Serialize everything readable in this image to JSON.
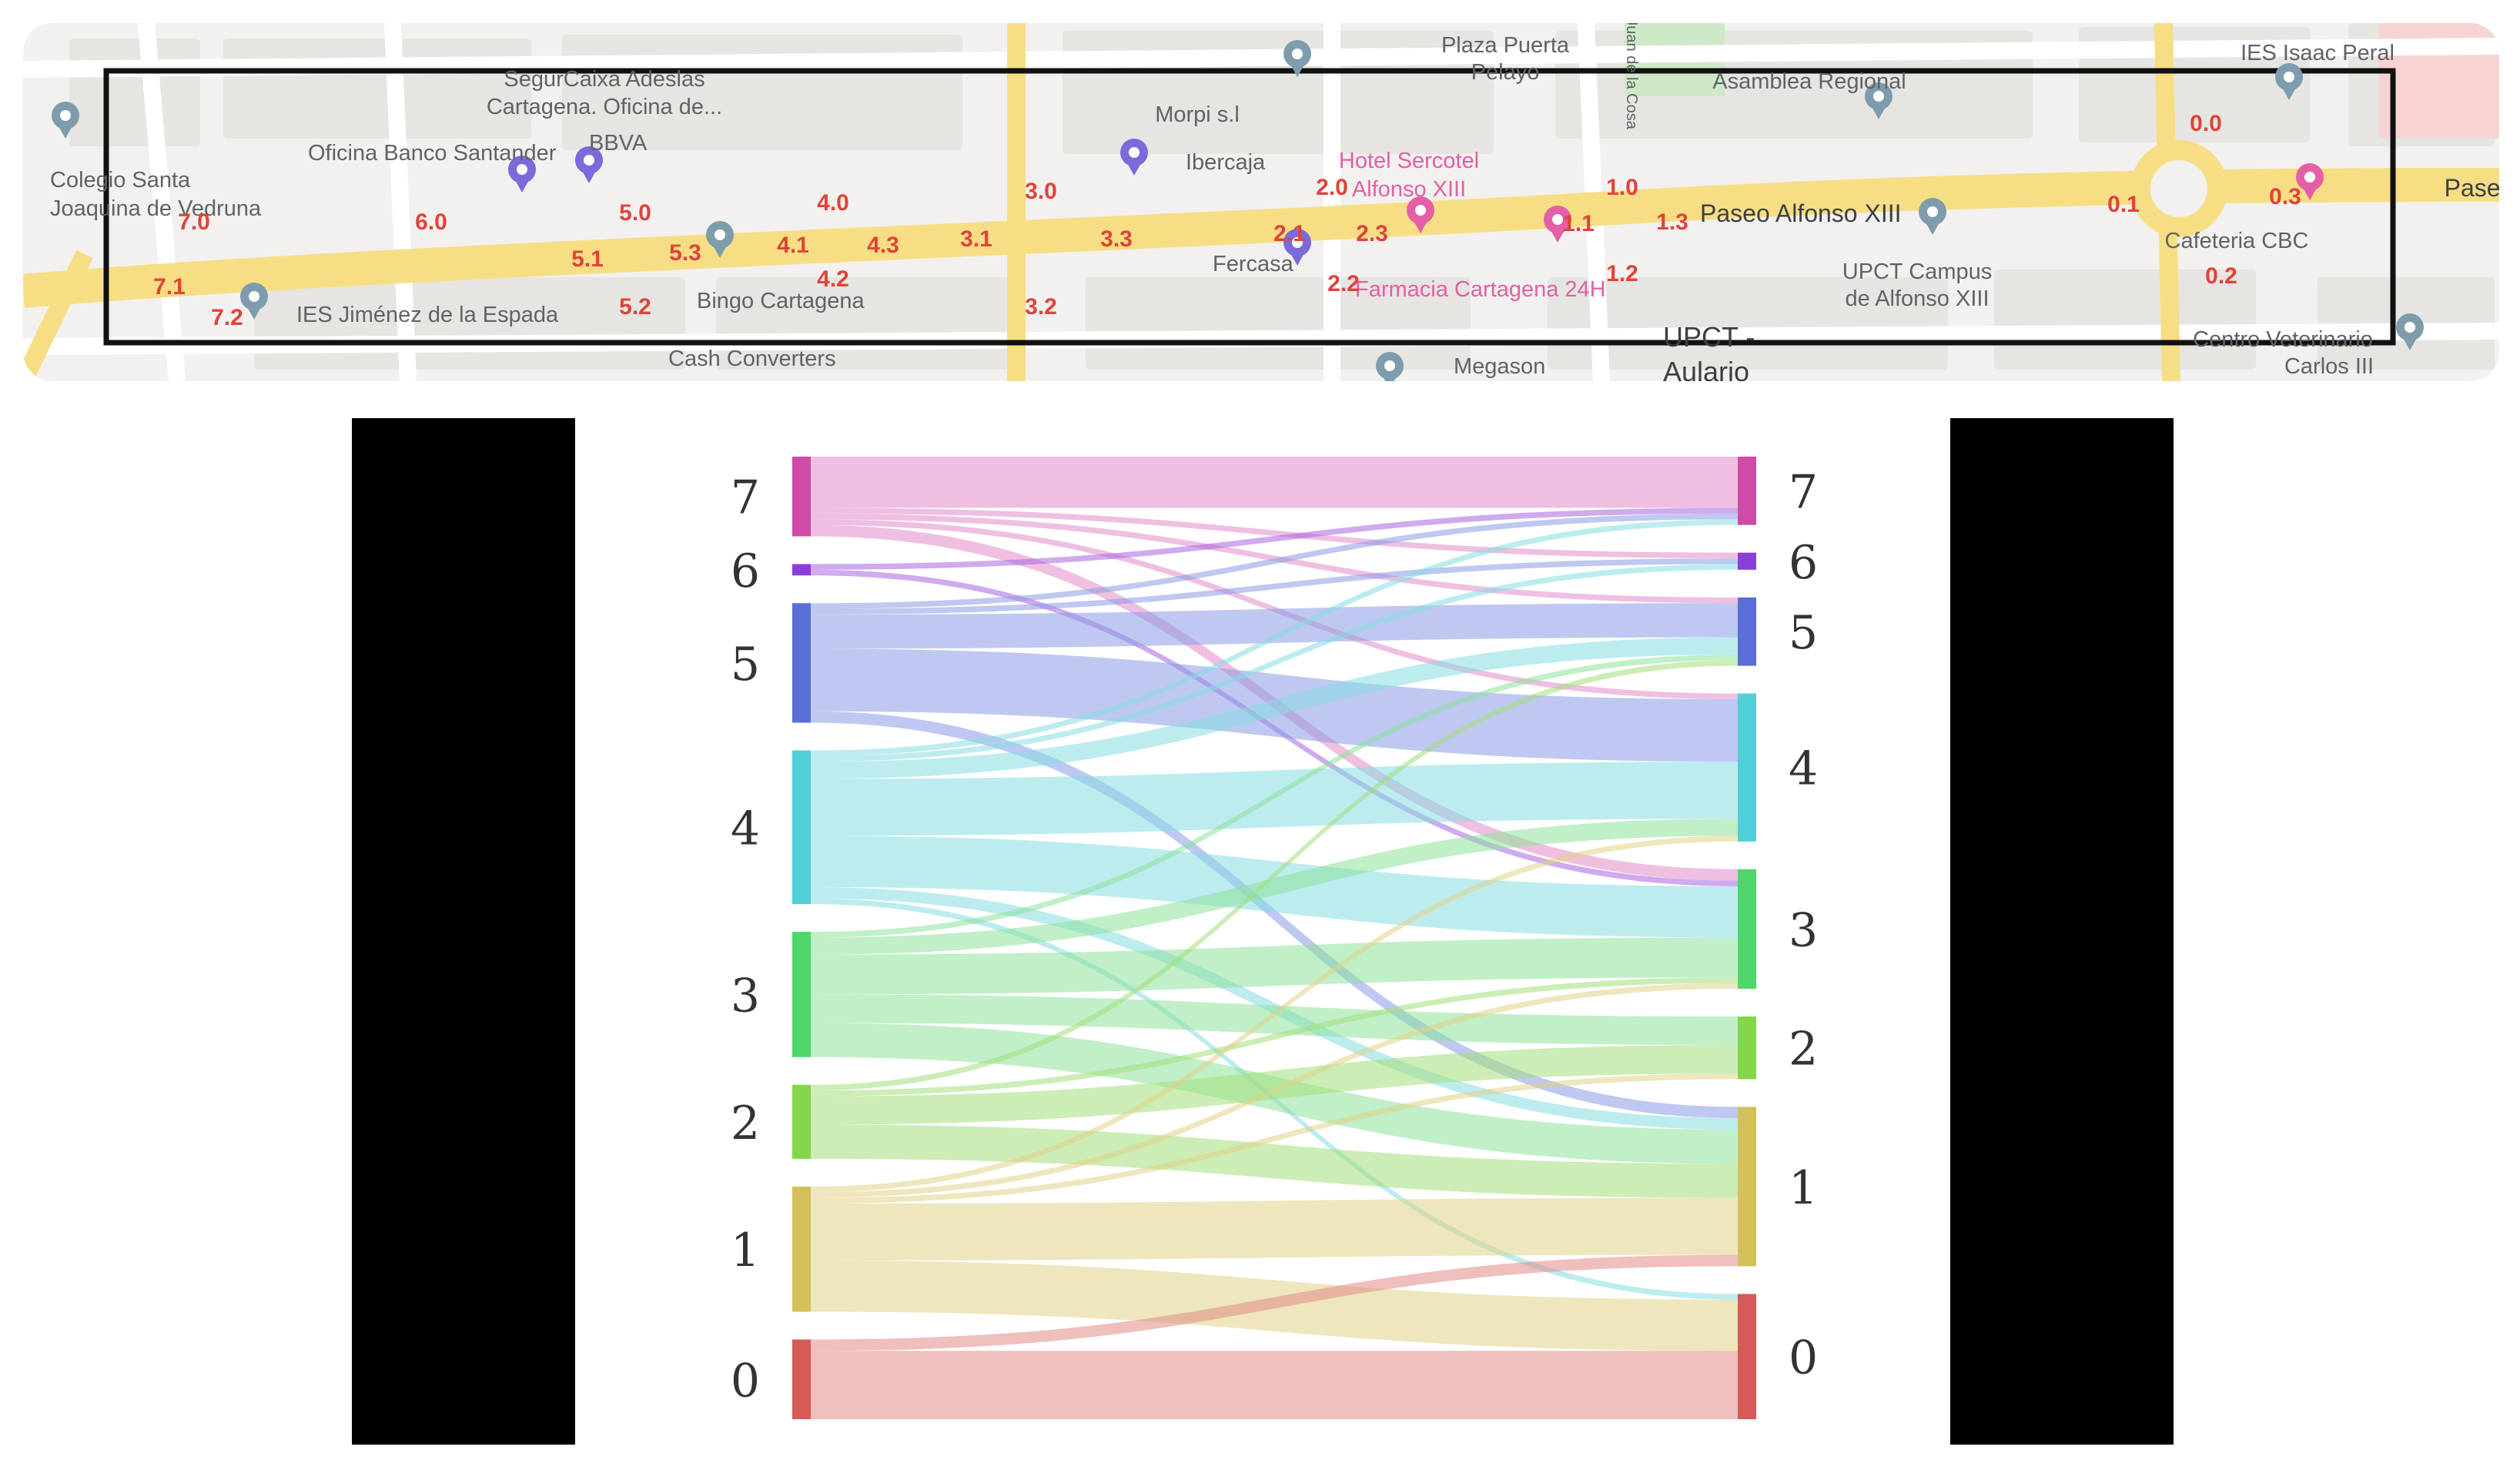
{
  "map": {
    "places": [
      "SegurCaixa Adeslas",
      "Cartagena. Oficina de...",
      "Oficina Banco Santander",
      "BBVA",
      "Colegio Santa",
      "Joaquina de Vedruna",
      "IES Jiménez de la Espada",
      "Bingo Cartagena",
      "Calle Juan de la Cosa",
      "Morpi s.l",
      "Ibercaja",
      "Fercasa",
      "Hotel Sercotel",
      "Alfonso XIII",
      "Farmacia Cartagena 24H",
      "Plaza Puerta",
      "Pelayo",
      "Asamblea Regional",
      "IES Isaac Peral",
      "Paseo Alfonso XIII",
      "Paseo",
      "UPCT Campus",
      "de Alfonso XIII",
      "UPCT -",
      "Aulario",
      "Cafeteria CBC",
      "Centro Veterinario",
      "Carlos III",
      "Cash Converters",
      "Megason"
    ],
    "segment_labels": [
      "7.0",
      "7.1",
      "7.2",
      "6.0",
      "5.0",
      "5.1",
      "5.2",
      "5.3",
      "4.0",
      "4.1",
      "4.2",
      "4.3",
      "3.0",
      "3.1",
      "3.2",
      "3.3",
      "2.0",
      "2.1",
      "2.2",
      "2.3",
      "1.0",
      "1.1",
      "1.2",
      "1.3",
      "0.0",
      "0.1",
      "0.2",
      "0.3"
    ],
    "colors": {
      "road": "#f7de84",
      "label": "#e0433a",
      "pin": "#7f9cad",
      "pin_purple": "#7a6bdb",
      "pin_pink": "#e45fa5"
    }
  },
  "chart_data": {
    "type": "sankey",
    "left_labels": [
      "7",
      "6",
      "5",
      "4",
      "3",
      "2",
      "1",
      "0"
    ],
    "right_labels": [
      "7",
      "6",
      "5",
      "4",
      "3",
      "2",
      "1",
      "0"
    ],
    "node_colors": {
      "7": "#e28bc8",
      "6": "#a864e0",
      "5": "#8b9ae6",
      "4": "#86dde2",
      "3": "#8ce29a",
      "2": "#a3df7a",
      "1": "#e0d187",
      "0": "#e28a86"
    },
    "node_edge_colors": {
      "7": "#d04aa7",
      "6": "#8a3fd8",
      "5": "#5a6ed8",
      "4": "#4fcfd8",
      "3": "#4fd66a",
      "2": "#84d64a",
      "1": "#d4c05a",
      "0": "#d65a55"
    },
    "left_totals": {
      "7": 14,
      "6": 2,
      "5": 21,
      "4": 27,
      "3": 22,
      "2": 13,
      "1": 22,
      "0": 14
    },
    "flows": [
      {
        "source": "7",
        "target": "7",
        "value": 9
      },
      {
        "source": "7",
        "target": "6",
        "value": 1
      },
      {
        "source": "7",
        "target": "5",
        "value": 1
      },
      {
        "source": "7",
        "target": "4",
        "value": 1
      },
      {
        "source": "7",
        "target": "3",
        "value": 2
      },
      {
        "source": "6",
        "target": "7",
        "value": 1
      },
      {
        "source": "6",
        "target": "3",
        "value": 1
      },
      {
        "source": "5",
        "target": "7",
        "value": 1
      },
      {
        "source": "5",
        "target": "6",
        "value": 1
      },
      {
        "source": "5",
        "target": "5",
        "value": 6
      },
      {
        "source": "5",
        "target": "4",
        "value": 11
      },
      {
        "source": "5",
        "target": "1",
        "value": 2
      },
      {
        "source": "4",
        "target": "7",
        "value": 1
      },
      {
        "source": "4",
        "target": "6",
        "value": 1
      },
      {
        "source": "4",
        "target": "5",
        "value": 3
      },
      {
        "source": "4",
        "target": "4",
        "value": 10
      },
      {
        "source": "4",
        "target": "3",
        "value": 9
      },
      {
        "source": "4",
        "target": "1",
        "value": 2
      },
      {
        "source": "4",
        "target": "0",
        "value": 1
      },
      {
        "source": "3",
        "target": "5",
        "value": 1
      },
      {
        "source": "3",
        "target": "4",
        "value": 3
      },
      {
        "source": "3",
        "target": "3",
        "value": 7
      },
      {
        "source": "3",
        "target": "2",
        "value": 5
      },
      {
        "source": "3",
        "target": "1",
        "value": 6
      },
      {
        "source": "2",
        "target": "5",
        "value": 1
      },
      {
        "source": "2",
        "target": "3",
        "value": 1
      },
      {
        "source": "2",
        "target": "2",
        "value": 5
      },
      {
        "source": "2",
        "target": "1",
        "value": 6
      },
      {
        "source": "1",
        "target": "4",
        "value": 1
      },
      {
        "source": "1",
        "target": "3",
        "value": 1
      },
      {
        "source": "1",
        "target": "2",
        "value": 1
      },
      {
        "source": "1",
        "target": "1",
        "value": 10
      },
      {
        "source": "1",
        "target": "0",
        "value": 9
      },
      {
        "source": "0",
        "target": "1",
        "value": 2
      },
      {
        "source": "0",
        "target": "0",
        "value": 12
      }
    ]
  }
}
